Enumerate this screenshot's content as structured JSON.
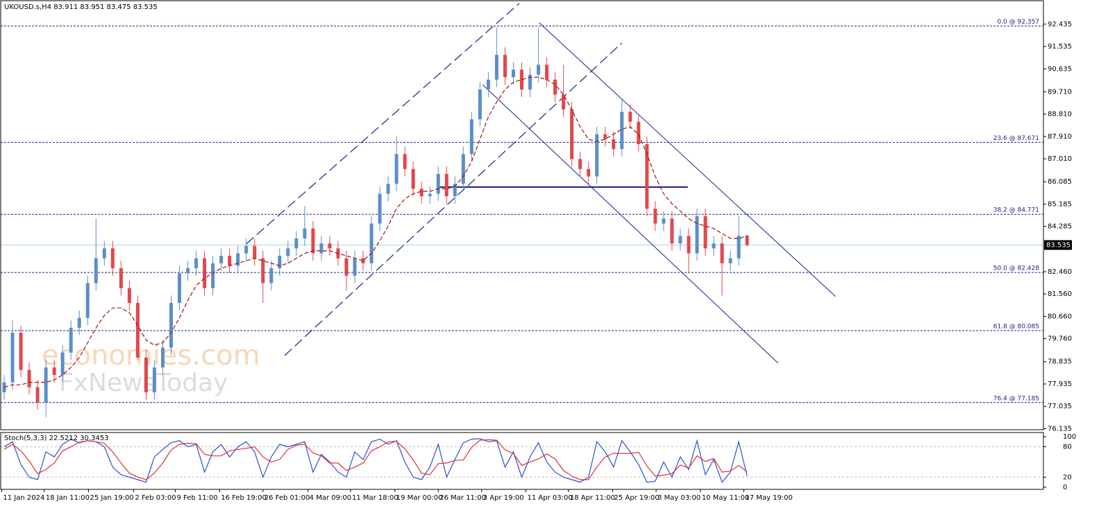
{
  "chart_data": {
    "type": "candlestick",
    "title": "UKOUSD.s,H4  83.911 83.951 83.475 83.535",
    "watermark": [
      "economies.com",
      "FxNewsToday"
    ],
    "xlim": [
      0,
      125
    ],
    "xticks": [
      {
        "value": 0.2,
        "label": "11 Jan 2024"
      },
      {
        "value": 5.3,
        "label": "18 Jan 11:00"
      },
      {
        "value": 10.6,
        "label": "25 Jan 19:00"
      },
      {
        "value": 16.0,
        "label": "2 Feb 03:00"
      },
      {
        "value": 21.0,
        "label": "9 Feb 11:00"
      },
      {
        "value": 26.3,
        "label": "16 Feb 19:00"
      },
      {
        "value": 31.5,
        "label": "26 Feb 01:00"
      },
      {
        "value": 36.9,
        "label": "4 Mar 09:00"
      },
      {
        "value": 42.0,
        "label": "11 Mar 18:00"
      },
      {
        "value": 47.3,
        "label": "19 Mar 00:00"
      },
      {
        "value": 52.5,
        "label": "26 Mar 11:00"
      },
      {
        "value": 57.7,
        "label": "3 Apr 19:00"
      },
      {
        "value": 63.0,
        "label": "11 Apr 03:00"
      },
      {
        "value": 68.1,
        "label": "18 Apr 11:00"
      },
      {
        "value": 73.4,
        "label": "25 Apr 19:00"
      },
      {
        "value": 78.6,
        "label": "3 May 03:00"
      },
      {
        "value": 83.9,
        "label": "10 May 11:00"
      },
      {
        "value": 89.1,
        "label": "17 May 19:00"
      }
    ],
    "ylim": [
      76.09,
      93.27
    ],
    "yticks": [
      92.435,
      91.535,
      90.635,
      {
        "value": 89.71,
        "label": "89.710"
      },
      {
        "value": 88.81,
        "label": "88.810"
      },
      {
        "value": 87.91,
        "label": "87.910"
      },
      {
        "value": 87.01,
        "label": "87.010"
      },
      86.085,
      85.185,
      84.285,
      {
        "value": 82.46,
        "label": "82.460"
      },
      {
        "value": 81.56,
        "label": "81.560"
      },
      {
        "value": 80.66,
        "label": "80.660"
      },
      {
        "value": 79.76,
        "label": "79.760"
      },
      78.835,
      77.935,
      77.035,
      76.135
    ],
    "up_color": "#5b8ec9",
    "down_color": "#e0474c",
    "open": [
      77.6,
      78.0,
      80.0,
      78.5,
      77.8,
      77.2,
      78.6,
      78.3,
      79.2,
      80.2,
      80.6,
      82.0,
      83.0,
      83.4,
      82.6,
      81.8,
      81.2,
      79.0,
      77.6,
      78.6,
      79.4,
      81.2,
      82.4,
      82.6,
      83.0,
      81.8,
      82.8,
      83.1,
      82.7,
      83.2,
      83.5,
      83.0,
      82.0,
      82.6,
      83.1,
      83.4,
      83.8,
      84.2,
      83.2,
      83.6,
      83.4,
      83.0,
      82.3,
      83.0,
      82.8,
      84.4,
      85.6,
      86.0,
      87.2,
      86.6,
      85.8,
      85.5,
      85.6,
      86.4,
      85.5,
      86.0,
      87.2,
      88.6,
      89.8,
      90.2,
      91.2,
      90.3,
      90.6,
      89.8,
      90.4,
      90.8,
      90.2,
      89.6,
      89.0,
      87.0,
      86.6,
      86.3,
      88.0,
      87.8,
      87.4,
      88.9,
      88.5,
      87.6,
      85.0,
      84.4,
      84.6,
      83.6,
      83.9,
      83.2,
      84.7,
      83.4,
      83.6,
      82.8,
      83.0,
      83.911
    ],
    "high": [
      78.3,
      80.5,
      80.3,
      78.8,
      78.1,
      78.9,
      78.9,
      79.5,
      80.5,
      80.9,
      82.3,
      84.6,
      83.7,
      83.7,
      82.9,
      82.1,
      81.5,
      79.3,
      78.9,
      79.7,
      81.5,
      82.7,
      82.9,
      83.3,
      83.3,
      83.1,
      83.4,
      83.4,
      83.5,
      83.8,
      83.8,
      83.3,
      82.9,
      83.4,
      83.7,
      84.1,
      85.1,
      84.5,
      83.9,
      83.9,
      83.7,
      83.3,
      83.3,
      83.3,
      84.7,
      85.9,
      86.3,
      87.9,
      87.5,
      86.9,
      86.1,
      85.9,
      86.7,
      86.7,
      86.3,
      87.5,
      88.9,
      90.1,
      90.5,
      92.3,
      91.5,
      90.9,
      90.9,
      90.7,
      92.3,
      91.1,
      90.5,
      90.8,
      89.3,
      87.3,
      86.9,
      88.3,
      88.3,
      88.1,
      89.4,
      89.2,
      88.8,
      87.9,
      85.3,
      84.9,
      84.9,
      84.2,
      84.2,
      85.0,
      85.0,
      83.9,
      83.9,
      83.3,
      84.7,
      83.951
    ],
    "low": [
      77.3,
      77.7,
      78.2,
      77.5,
      76.9,
      76.6,
      78.0,
      78.0,
      78.9,
      79.9,
      80.3,
      81.7,
      82.7,
      82.3,
      81.5,
      80.9,
      78.9,
      77.3,
      77.3,
      78.3,
      79.1,
      80.9,
      82.1,
      82.3,
      81.5,
      81.5,
      82.5,
      82.4,
      82.4,
      82.9,
      82.7,
      81.2,
      81.7,
      82.3,
      82.8,
      83.1,
      83.5,
      82.9,
      82.9,
      83.1,
      82.7,
      81.7,
      82.0,
      82.5,
      82.5,
      84.1,
      85.3,
      85.7,
      86.3,
      85.5,
      85.2,
      85.2,
      85.3,
      85.2,
      85.2,
      85.7,
      86.9,
      88.3,
      89.5,
      89.9,
      90.0,
      90.0,
      89.5,
      89.5,
      90.1,
      89.9,
      89.3,
      88.7,
      86.7,
      86.3,
      86.0,
      86.0,
      87.5,
      87.1,
      87.1,
      88.2,
      87.3,
      84.7,
      84.1,
      84.1,
      83.3,
      83.3,
      82.4,
      82.9,
      83.1,
      83.1,
      81.5,
      82.5,
      82.7,
      83.475
    ],
    "close": [
      78.0,
      80.0,
      78.5,
      77.8,
      77.2,
      78.6,
      78.3,
      79.2,
      80.2,
      80.6,
      82.0,
      83.0,
      83.4,
      82.6,
      81.8,
      81.2,
      79.0,
      77.6,
      78.6,
      79.4,
      81.2,
      82.4,
      82.6,
      83.0,
      81.8,
      82.8,
      83.1,
      82.7,
      83.2,
      83.5,
      83.0,
      82.0,
      82.6,
      83.1,
      83.4,
      83.8,
      84.2,
      83.2,
      83.6,
      83.4,
      83.0,
      82.3,
      83.0,
      82.8,
      84.4,
      85.6,
      86.0,
      87.2,
      86.6,
      85.8,
      85.5,
      85.6,
      86.4,
      85.5,
      86.0,
      87.2,
      88.6,
      89.8,
      90.2,
      91.2,
      90.3,
      90.6,
      89.8,
      90.4,
      90.8,
      90.2,
      89.6,
      89.0,
      87.0,
      86.6,
      86.3,
      88.0,
      87.8,
      87.4,
      88.9,
      88.5,
      87.6,
      85.0,
      84.4,
      84.6,
      83.6,
      83.9,
      83.2,
      84.7,
      83.4,
      83.6,
      82.8,
      83.0,
      83.9,
      83.535
    ],
    "moving_average": {
      "color": "#a01010",
      "values": [
        77.8,
        77.9,
        77.9,
        78.0,
        78.0,
        78.0,
        78.1,
        78.3,
        78.6,
        79.0,
        79.6,
        80.2,
        80.7,
        81.0,
        81.0,
        80.8,
        80.3,
        79.7,
        79.5,
        79.6,
        80.0,
        80.6,
        81.3,
        81.9,
        82.2,
        82.4,
        82.6,
        82.7,
        82.8,
        82.9,
        83.0,
        82.9,
        82.8,
        82.7,
        82.8,
        83.0,
        83.2,
        83.3,
        83.3,
        83.3,
        83.2,
        83.1,
        83.0,
        82.9,
        83.2,
        83.7,
        84.3,
        85.0,
        85.4,
        85.6,
        85.7,
        85.7,
        85.8,
        85.8,
        85.9,
        86.3,
        86.9,
        87.8,
        88.7,
        89.3,
        89.8,
        90.1,
        90.2,
        90.3,
        90.3,
        90.2,
        90.0,
        89.6,
        89.0,
        88.3,
        87.8,
        87.7,
        87.8,
        88.0,
        88.2,
        88.3,
        88.0,
        87.2,
        86.3,
        85.6,
        85.2,
        84.9,
        84.6,
        84.4,
        84.3,
        84.2,
        84.0,
        83.8,
        83.8,
        83.9
      ]
    },
    "current_price": 83.535,
    "fib_color": "#1c1c8c",
    "fib_levels": [
      {
        "value": 92.357,
        "label": "0.0 @ 92.357"
      },
      {
        "value": 87.671,
        "label": "23.6 @ 87.671"
      },
      {
        "value": 84.771,
        "label": "38.2 @ 84.771"
      },
      {
        "value": 82.428,
        "label": "50.0 @ 82.428"
      },
      {
        "value": 80.085,
        "label": "61.8 @ 80.085"
      },
      {
        "value": 77.185,
        "label": "76.4 @ 77.185"
      }
    ],
    "trendlines": [
      {
        "x": [
          29.5,
          62.2
        ],
        "values": [
          83.58,
          93.27
        ],
        "style": "dash"
      },
      {
        "x": [
          34.1,
          74.5
        ],
        "values": [
          79.08,
          91.68
        ],
        "style": "dash"
      },
      {
        "x": [
          64.6,
          100.1
        ],
        "values": [
          92.49,
          81.46
        ],
        "style": "solid"
      },
      {
        "x": [
          57.8,
          93.2
        ],
        "values": [
          90.0,
          78.78
        ],
        "style": "solid"
      },
      {
        "x": [
          52.6,
          82.4
        ],
        "values": [
          85.87,
          85.87
        ],
        "style": "thick"
      }
    ],
    "stochastic": {
      "label": "Stoch(5,3,3) 22.5212 30.3453",
      "ylim": [
        0,
        100
      ],
      "yticks": [
        100,
        80,
        20,
        0
      ],
      "levels": [
        80,
        20
      ],
      "series": [
        {
          "color": "#2a4fd0",
          "values": [
            80,
            90,
            45,
            20,
            15,
            70,
            60,
            85,
            95,
            88,
            92,
            90,
            80,
            40,
            25,
            20,
            15,
            10,
            60,
            75,
            88,
            92,
            80,
            85,
            30,
            70,
            85,
            60,
            80,
            90,
            70,
            20,
            60,
            85,
            80,
            85,
            90,
            30,
            65,
            50,
            30,
            20,
            70,
            55,
            90,
            95,
            85,
            92,
            50,
            20,
            15,
            40,
            85,
            20,
            55,
            88,
            95,
            96,
            90,
            92,
            40,
            70,
            20,
            60,
            88,
            50,
            30,
            20,
            15,
            10,
            20,
            90,
            70,
            40,
            92,
            70,
            45,
            10,
            12,
            50,
            20,
            60,
            35,
            92,
            25,
            55,
            10,
            30,
            90,
            22.5212
          ]
        },
        {
          "color": "#e03030",
          "values": [
            75,
            85,
            72,
            52,
            27,
            35,
            48,
            72,
            80,
            89,
            92,
            90,
            87,
            70,
            48,
            28,
            20,
            15,
            28,
            48,
            74,
            85,
            87,
            86,
            65,
            62,
            62,
            72,
            75,
            77,
            80,
            60,
            50,
            55,
            75,
            83,
            85,
            68,
            62,
            48,
            48,
            33,
            40,
            48,
            72,
            80,
            90,
            91,
            76,
            54,
            28,
            25,
            47,
            48,
            53,
            54,
            79,
            93,
            94,
            93,
            74,
            67,
            43,
            50,
            56,
            66,
            56,
            33,
            22,
            15,
            15,
            40,
            60,
            67,
            67,
            67,
            69,
            42,
            22,
            24,
            27,
            44,
            38,
            62,
            51,
            57,
            30,
            32,
            43,
            30.3453
          ]
        }
      ]
    }
  }
}
